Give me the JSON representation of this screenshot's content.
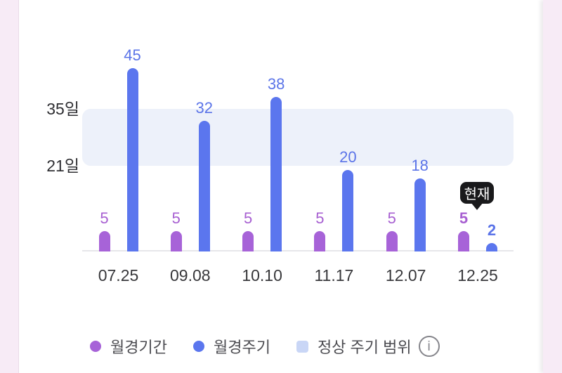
{
  "chart_data": {
    "type": "bar",
    "categories": [
      "07.25",
      "09.08",
      "10.10",
      "11.17",
      "12.07",
      "12.25"
    ],
    "series": [
      {
        "key": "period",
        "name": "월경기간",
        "color": "#a763d8",
        "label_color": "#a75fd1",
        "values": [
          5,
          5,
          5,
          5,
          5,
          5
        ]
      },
      {
        "key": "cycle",
        "name": "월경주기",
        "color": "#5b76ee",
        "label_color": "#5b74e8",
        "values": [
          45,
          32,
          38,
          20,
          18,
          2
        ]
      }
    ],
    "y_axis": {
      "unit": "일",
      "tick_labels": [
        "35일",
        "21일"
      ],
      "tick_values": [
        35,
        21
      ]
    },
    "normal_range": {
      "label": "정상 주기 범위",
      "min": 21,
      "max": 35,
      "color": "#edf1fa"
    },
    "current_marker": {
      "label": "현재",
      "category": "12.25"
    },
    "xlabel": "",
    "ylabel": "",
    "grid": false,
    "legend_position": "bottom",
    "baseline_color": "#e6e6ea"
  },
  "legend": {
    "items": [
      {
        "id": "period",
        "label": "월경기간",
        "swatch": "dot",
        "color": "#a763d8"
      },
      {
        "id": "cycle",
        "label": "월경주기",
        "swatch": "dot",
        "color": "#5b76ee"
      },
      {
        "id": "normal-range",
        "label": "정상 주기 범위",
        "swatch": "square",
        "color": "#c9d6f6"
      }
    ],
    "info_icon": "info-circle-icon",
    "info_glyph": "i"
  },
  "page": {
    "edge_color": "#f7ebf6",
    "background": "#ffffff"
  }
}
